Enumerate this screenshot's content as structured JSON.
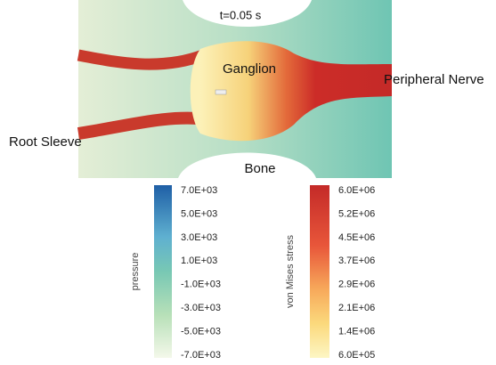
{
  "figure": {
    "time_label": "t=0.05 s",
    "annotations": {
      "ganglion": "Ganglion",
      "peripheral_nerve": "Peripheral Nerve",
      "root_sleeve": "Root Sleeve",
      "bone": "Bone"
    },
    "colorbars": [
      {
        "title": "pressure",
        "ticks": [
          "7.0E+03",
          "5.0E+03",
          "3.0E+03",
          "1.0E+03",
          "-1.0E+03",
          "-3.0E+03",
          "-5.0E+03",
          "-7.0E+03"
        ]
      },
      {
        "title": "von Mises stress",
        "ticks": [
          "6.0E+06",
          "5.2E+06",
          "4.5E+06",
          "3.7E+06",
          "2.9E+06",
          "2.1E+06",
          "1.4E+06",
          "6.0E+05"
        ]
      }
    ]
  }
}
